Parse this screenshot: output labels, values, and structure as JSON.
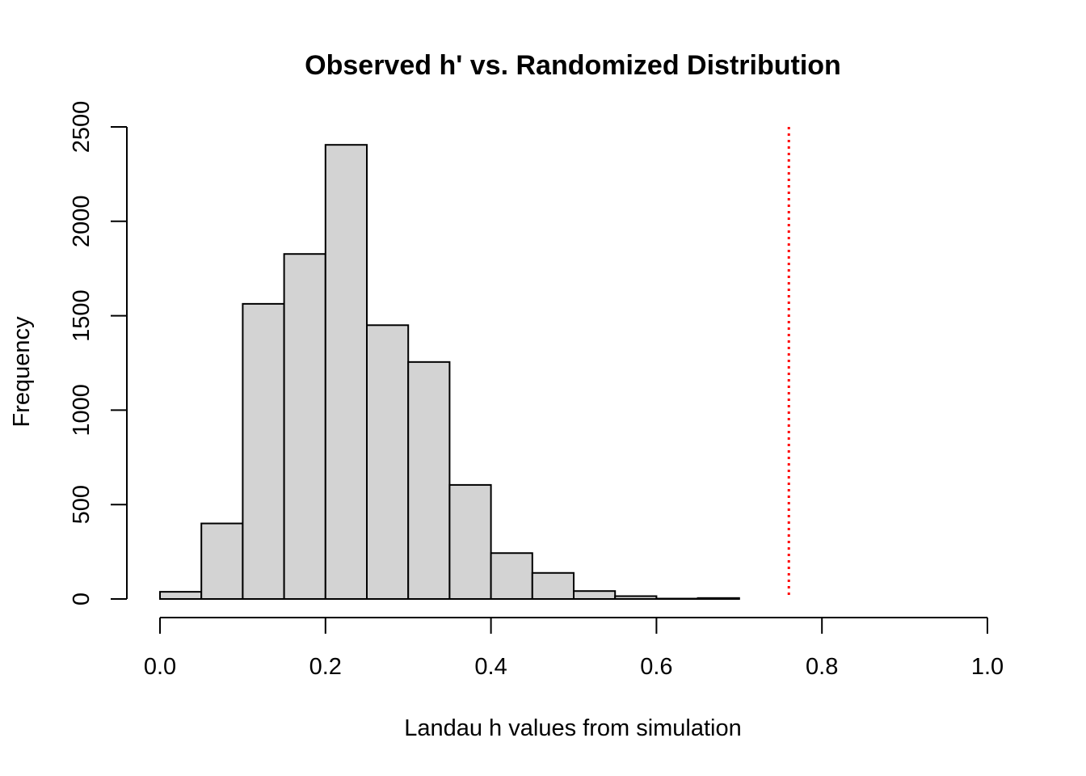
{
  "chart_data": {
    "type": "bar",
    "title": "Observed h' vs. Randomized Distribution",
    "xlabel": "Landau h values from simulation",
    "ylabel": "Frequency",
    "bins": [
      {
        "start": 0.0,
        "end": 0.05,
        "count": 38
      },
      {
        "start": 0.05,
        "end": 0.1,
        "count": 400
      },
      {
        "start": 0.1,
        "end": 0.15,
        "count": 1563
      },
      {
        "start": 0.15,
        "end": 0.2,
        "count": 1827
      },
      {
        "start": 0.2,
        "end": 0.25,
        "count": 2405
      },
      {
        "start": 0.25,
        "end": 0.3,
        "count": 1450
      },
      {
        "start": 0.3,
        "end": 0.35,
        "count": 1255
      },
      {
        "start": 0.35,
        "end": 0.4,
        "count": 604
      },
      {
        "start": 0.4,
        "end": 0.45,
        "count": 243
      },
      {
        "start": 0.45,
        "end": 0.5,
        "count": 138
      },
      {
        "start": 0.5,
        "end": 0.55,
        "count": 42
      },
      {
        "start": 0.55,
        "end": 0.6,
        "count": 15
      },
      {
        "start": 0.6,
        "end": 0.65,
        "count": 2
      },
      {
        "start": 0.65,
        "end": 0.7,
        "count": 5
      }
    ],
    "xlim": [
      0,
      1
    ],
    "ylim": [
      0,
      2500
    ],
    "xticks": [
      "0.0",
      "0.2",
      "0.4",
      "0.6",
      "0.8",
      "1.0"
    ],
    "yticks": [
      "0",
      "500",
      "1000",
      "1500",
      "2000",
      "2500"
    ],
    "reference_line": {
      "x": 0.76,
      "color": "#ff0000",
      "style": "dotted"
    },
    "bar_color": "#d3d3d3",
    "grid": false
  }
}
